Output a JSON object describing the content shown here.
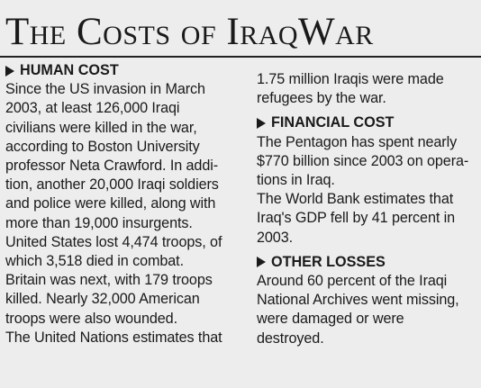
{
  "title": "The Costs of IraqWar",
  "left_column": {
    "human_cost": {
      "heading": "HUMAN COST",
      "lines": [
        "Since the US invasion in March",
        "2003, at least 126,000 Iraqi",
        "civilians were killed in the war,",
        "according to Boston University",
        "professor Neta Crawford. In addi-",
        "tion, another 20,000 Iraqi soldiers",
        "and police were killed, along with",
        "more than 19,000 insurgents.",
        "United States lost 4,474 troops, of",
        "which 3,518 died in combat.",
        "Britain was next, with 179 troops",
        "killed. Nearly 32,000 American",
        "troops were also wounded.",
        "The United Nations estimates that"
      ]
    }
  },
  "right_column": {
    "continuation_lines": [
      "1.75 million Iraqis were made",
      "refugees by the war."
    ],
    "financial_cost": {
      "heading": "FINANCIAL COST",
      "lines": [
        "The Pentagon has spent nearly",
        "$770 billion since 2003 on opera-",
        "tions in Iraq.",
        "The World Bank estimates that",
        "Iraq's GDP fell by 41 percent in",
        "2003."
      ]
    },
    "other_losses": {
      "heading": "OTHER LOSSES",
      "lines": [
        "Around 60 percent of the Iraqi",
        "National Archives went missing,",
        "were damaged or were",
        "destroyed."
      ]
    }
  }
}
